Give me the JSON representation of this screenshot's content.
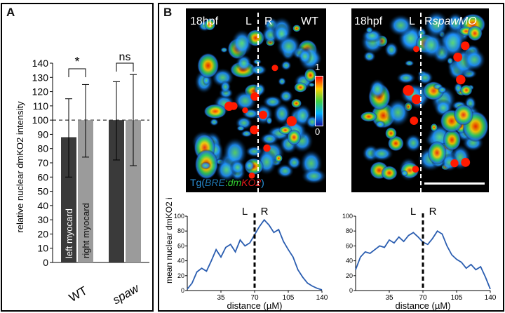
{
  "panelA": {
    "label": "A",
    "chart_data": {
      "type": "bar",
      "categories": [
        "WT",
        "spaw"
      ],
      "series": [
        {
          "name": "left myocard",
          "color": "#3a3a3a",
          "values": [
            88,
            100
          ],
          "err_low": [
            60,
            72
          ],
          "err_high": [
            115,
            127
          ]
        },
        {
          "name": "right myocard",
          "color": "#9b9b9b",
          "values": [
            100,
            100
          ],
          "err_low": [
            74,
            68
          ],
          "err_high": [
            125,
            132
          ]
        }
      ],
      "ylabel": "relative nuclear dmKO2 intensity",
      "ylim": [
        0,
        140
      ],
      "yticks": [
        0,
        10,
        20,
        30,
        40,
        50,
        60,
        70,
        80,
        90,
        100,
        110,
        120,
        130,
        140
      ],
      "reference_line": 100,
      "significance": [
        "*",
        "ns"
      ]
    }
  },
  "panelB": {
    "label": "B",
    "images": [
      {
        "stage": "18hpf",
        "left": "L",
        "right": "R",
        "condition": "WT"
      },
      {
        "stage": "18hpf",
        "left": "L",
        "right": "R",
        "condition": "spawMO"
      }
    ],
    "colorbar": {
      "max": "1",
      "min": "0"
    },
    "transgene": {
      "prefix": "Tg(",
      "bre": "BRE",
      "colon": ":",
      "dm": "dm",
      "ko2": "KO2",
      "suffix": ")"
    },
    "colors": {
      "bre": "#1f78b4",
      "dm": "#32c832",
      "ko2": "#e01a1a",
      "tg": "#2b8fd6"
    },
    "chart_data": [
      {
        "type": "line",
        "x": [
          0,
          5,
          10,
          15,
          20,
          25,
          30,
          35,
          40,
          45,
          50,
          55,
          60,
          65,
          70,
          75,
          80,
          85,
          90,
          95,
          100,
          105,
          110,
          115,
          120,
          125,
          130,
          135,
          140
        ],
        "y": [
          2,
          10,
          25,
          30,
          26,
          40,
          55,
          45,
          58,
          62,
          52,
          68,
          60,
          64,
          75,
          86,
          95,
          88,
          78,
          82,
          66,
          55,
          45,
          28,
          18,
          10,
          6,
          3,
          1
        ],
        "xlabel": "distance (µM)",
        "ylabel": "mean nuclear dmKO2 intensity",
        "xticks": [
          35,
          70,
          105,
          140
        ],
        "yticks": [
          0,
          20,
          40,
          60,
          80,
          100
        ],
        "xlim": [
          0,
          140
        ],
        "ylim": [
          0,
          100
        ],
        "divider_x": 70,
        "left_label": "L",
        "right_label": "R"
      },
      {
        "type": "line",
        "x": [
          0,
          5,
          10,
          15,
          20,
          25,
          30,
          35,
          40,
          45,
          50,
          55,
          60,
          65,
          70,
          75,
          80,
          85,
          90,
          95,
          100,
          105,
          110,
          115,
          120,
          125,
          130,
          135,
          140
        ],
        "y": [
          28,
          45,
          52,
          50,
          55,
          60,
          58,
          68,
          64,
          72,
          66,
          74,
          78,
          72,
          65,
          62,
          70,
          80,
          76,
          60,
          48,
          42,
          38,
          30,
          35,
          28,
          32,
          18,
          2
        ],
        "xlabel": "distance (µM)",
        "ylabel": "",
        "xticks": [
          35,
          70,
          105,
          140
        ],
        "yticks": [
          0,
          20,
          40,
          60,
          80,
          100
        ],
        "xlim": [
          0,
          140
        ],
        "ylim": [
          0,
          100
        ],
        "divider_x": 70,
        "left_label": "L",
        "right_label": "R"
      }
    ]
  }
}
